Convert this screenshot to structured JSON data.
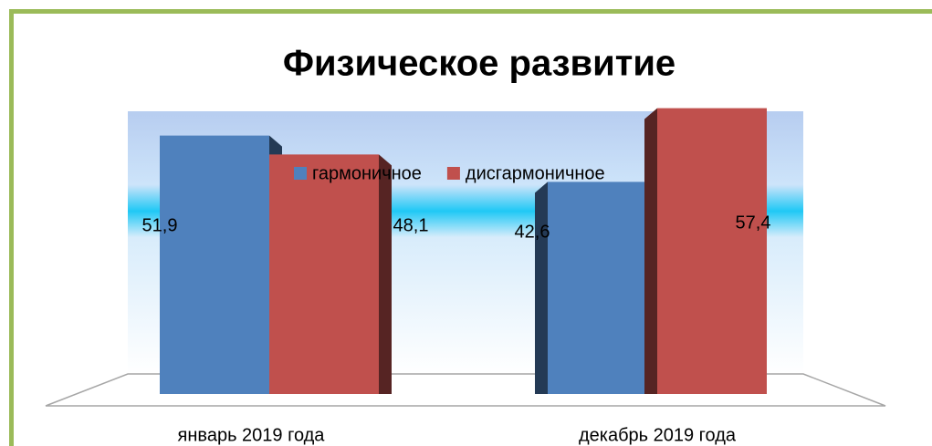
{
  "chart_data": {
    "type": "bar3d",
    "title": "Физическое развитие",
    "categories": [
      "январь 2019 года",
      "декабрь 2019 года"
    ],
    "series": [
      {
        "name": "гармоничное",
        "color": "#4f81bd",
        "values": [
          51.9,
          42.6
        ],
        "value_labels": [
          "51,9",
          "42,6"
        ]
      },
      {
        "name": "дисгармоничное",
        "color": "#c0504d",
        "values": [
          48.1,
          57.4
        ],
        "value_labels": [
          "48,1",
          "57,4"
        ]
      }
    ],
    "ylim": [
      0,
      60
    ]
  }
}
